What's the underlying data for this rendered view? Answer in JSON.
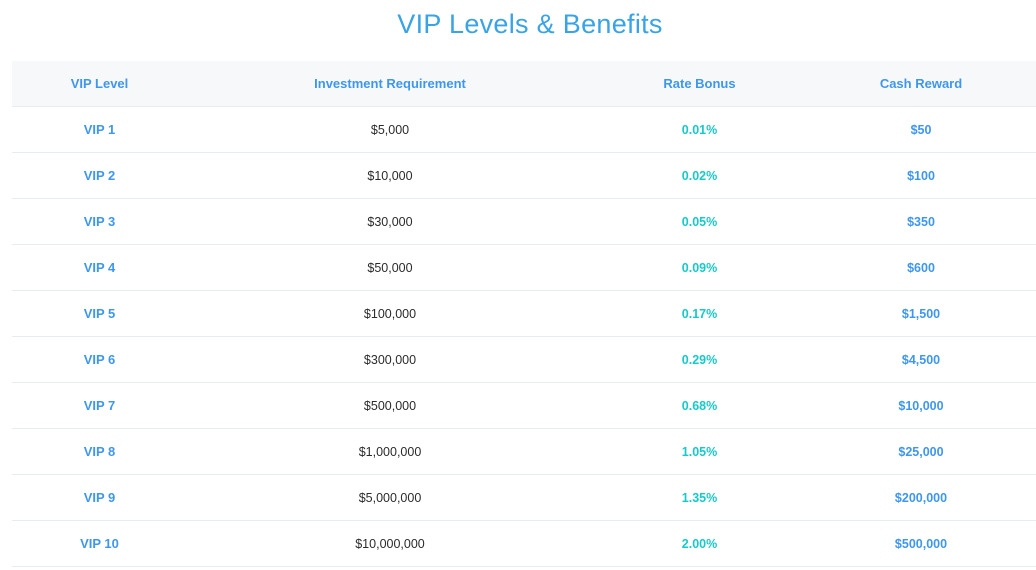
{
  "title": "VIP Levels & Benefits",
  "table": {
    "headers": [
      "VIP Level",
      "Investment Requirement",
      "Rate Bonus",
      "Cash Reward"
    ],
    "rows": [
      {
        "level": "VIP 1",
        "requirement": "$5,000",
        "bonus": "0.01%",
        "reward": "$50"
      },
      {
        "level": "VIP 2",
        "requirement": "$10,000",
        "bonus": "0.02%",
        "reward": "$100"
      },
      {
        "level": "VIP 3",
        "requirement": "$30,000",
        "bonus": "0.05%",
        "reward": "$350"
      },
      {
        "level": "VIP 4",
        "requirement": "$50,000",
        "bonus": "0.09%",
        "reward": "$600"
      },
      {
        "level": "VIP 5",
        "requirement": "$100,000",
        "bonus": "0.17%",
        "reward": "$1,500"
      },
      {
        "level": "VIP 6",
        "requirement": "$300,000",
        "bonus": "0.29%",
        "reward": "$4,500"
      },
      {
        "level": "VIP 7",
        "requirement": "$500,000",
        "bonus": "0.68%",
        "reward": "$10,000"
      },
      {
        "level": "VIP 8",
        "requirement": "$1,000,000",
        "bonus": "1.05%",
        "reward": "$25,000"
      },
      {
        "level": "VIP 9",
        "requirement": "$5,000,000",
        "bonus": "1.35%",
        "reward": "$200,000"
      },
      {
        "level": "VIP 10",
        "requirement": "$10,000,000",
        "bonus": "2.00%",
        "reward": "$500,000"
      }
    ]
  },
  "colors": {
    "title": "#3aa3e6",
    "header_text": "#3e97ec",
    "level_text": "#3e97ec",
    "bonus_text": "#18c9c9",
    "reward_text": "#3e97ec",
    "header_bg": "#f7f8fa"
  }
}
